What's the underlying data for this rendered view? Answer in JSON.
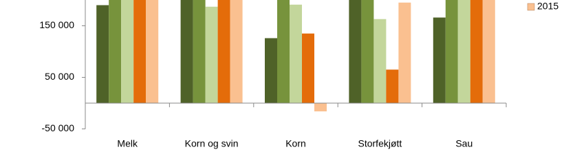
{
  "chart_data": {
    "type": "bar",
    "categories": [
      "Melk",
      "Korn og svin",
      "Korn",
      "Storfekjøtt",
      "Sau"
    ],
    "series": [
      {
        "name": null,
        "color": "#4f6228",
        "values": [
          190000,
          200000,
          126000,
          200000,
          166000
        ]
      },
      {
        "name": null,
        "color": "#77933c",
        "values": [
          200000,
          200000,
          200000,
          200000,
          200000
        ]
      },
      {
        "name": null,
        "color": "#c3d69b",
        "values": [
          200000,
          187000,
          191000,
          163000,
          200000
        ]
      },
      {
        "name": null,
        "color": "#e46c0a",
        "values": [
          200000,
          200000,
          135000,
          65000,
          200000
        ]
      },
      {
        "name": "2015",
        "color": "#fac090",
        "values": [
          200000,
          200000,
          -16000,
          195000,
          200000
        ]
      }
    ],
    "ylim": [
      -50000,
      200000
    ],
    "yticks": [
      {
        "value": -50000,
        "label": "-50 000"
      },
      {
        "value": 50000,
        "label": "50 000"
      },
      {
        "value": 150000,
        "label": "150 000"
      }
    ],
    "grid": false
  }
}
